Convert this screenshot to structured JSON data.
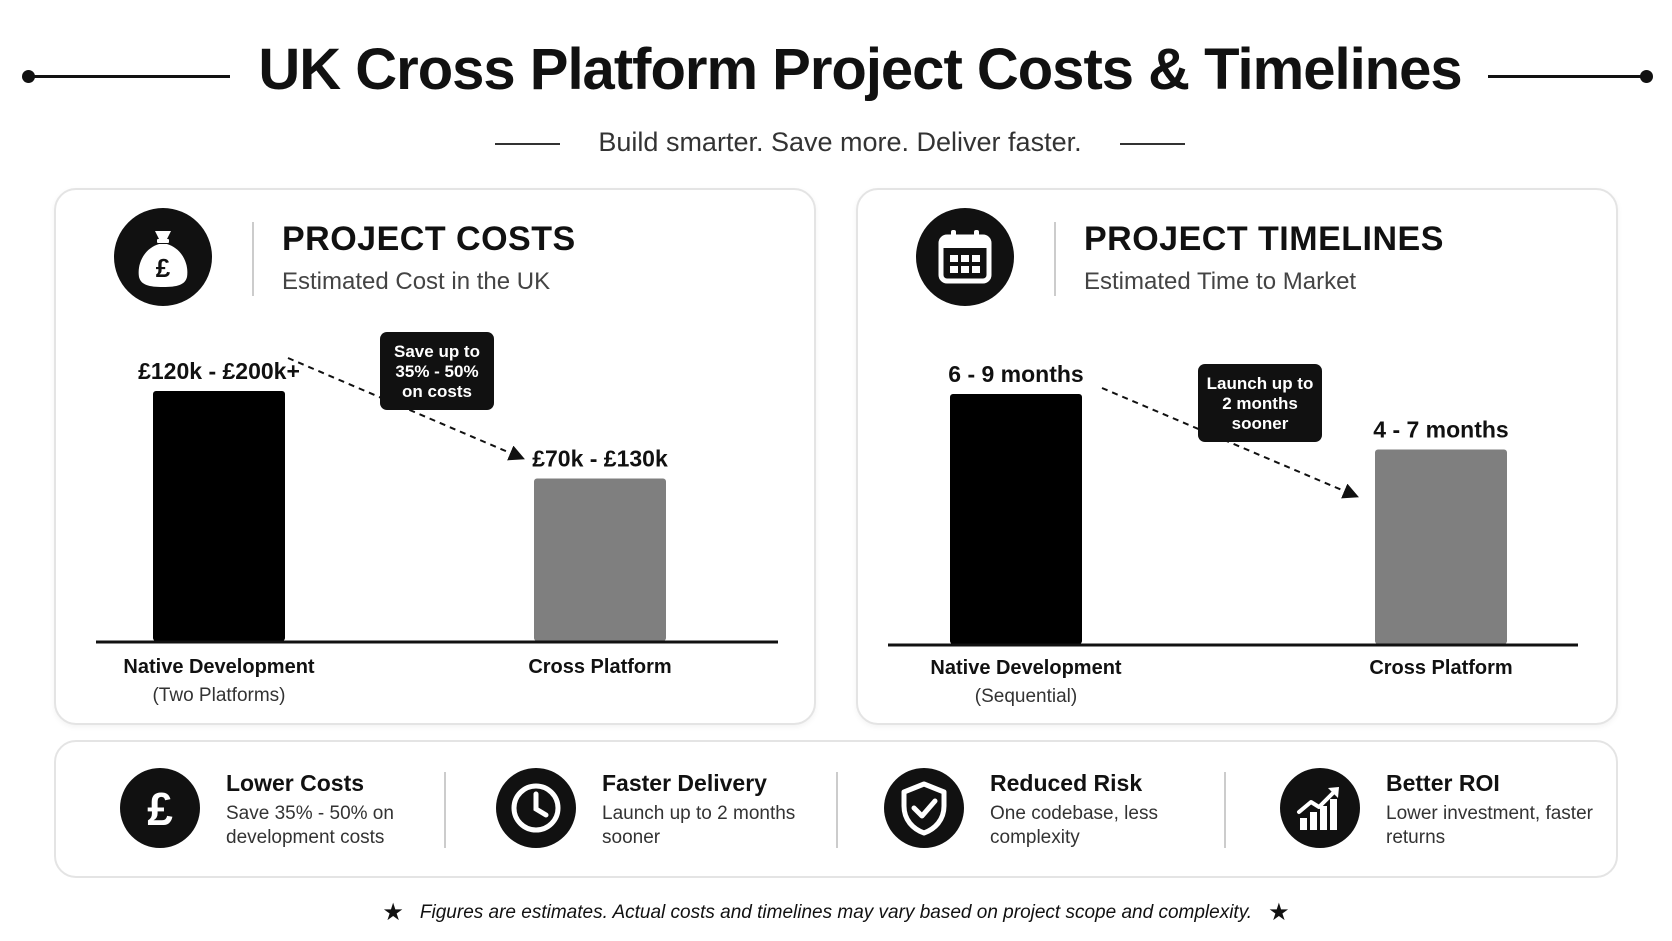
{
  "header": {
    "title": "UK Cross Platform Project Costs & Timelines",
    "subtitle": "Build smarter. Save more. Deliver faster."
  },
  "costs_panel": {
    "title": "PROJECT COSTS",
    "subtitle": "Estimated Cost in the UK",
    "icon": "money-bag-pound-icon",
    "callout_lines": [
      "Save up to",
      "35% - 50%",
      "on costs"
    ],
    "categories": [
      {
        "label": "Native Development",
        "sublabel": "(Two Platforms)"
      },
      {
        "label": "Cross Platform",
        "sublabel": ""
      }
    ]
  },
  "timelines_panel": {
    "title": "PROJECT TIMELINES",
    "subtitle": "Estimated Time to Market",
    "icon": "calendar-icon",
    "callout_lines": [
      "Launch up to",
      "2 months",
      "sooner"
    ],
    "categories": [
      {
        "label": "Native Development",
        "sublabel": "(Sequential)"
      },
      {
        "label": "Cross Platform",
        "sublabel": ""
      }
    ]
  },
  "chart_data": [
    {
      "type": "bar",
      "title": "PROJECT COSTS",
      "categories": [
        "Native Development",
        "Cross Platform"
      ],
      "value_labels": [
        "£120k - £200k+",
        "£70k - £130k"
      ],
      "values": [
        200,
        130
      ],
      "unit": "£k",
      "colors": [
        "#000000",
        "#7f7f7f"
      ],
      "ylim": [
        0,
        200
      ]
    },
    {
      "type": "bar",
      "title": "PROJECT TIMELINES",
      "categories": [
        "Native Development",
        "Cross Platform"
      ],
      "value_labels": [
        "6 - 9 months",
        "4 - 7 months"
      ],
      "values": [
        9,
        7
      ],
      "unit": "months",
      "colors": [
        "#000000",
        "#7f7f7f"
      ],
      "ylim": [
        0,
        9
      ]
    }
  ],
  "benefits": [
    {
      "icon": "pound-icon",
      "title": "Lower Costs",
      "description": "Save 35% - 50% on development costs"
    },
    {
      "icon": "clock-icon",
      "title": "Faster Delivery",
      "description": "Launch up to 2 months sooner"
    },
    {
      "icon": "shield-check-icon",
      "title": "Reduced Risk",
      "description": "One codebase, less complexity"
    },
    {
      "icon": "growth-chart-icon",
      "title": "Better ROI",
      "description": "Lower investment, faster returns"
    }
  ],
  "footnote": "Figures are estimates. Actual costs and timelines may vary based on project scope and complexity."
}
